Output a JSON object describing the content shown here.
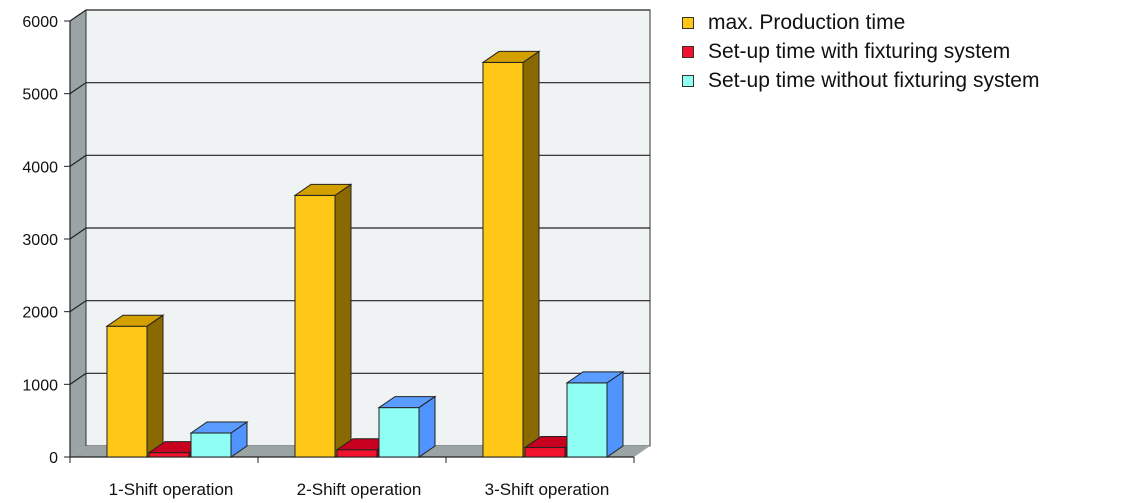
{
  "chart_data": {
    "type": "bar",
    "categories": [
      "1-Shift operation",
      "2-Shift operation",
      "3-Shift operation"
    ],
    "series": [
      {
        "name": "max. Production time",
        "values": [
          1800,
          3600,
          5430
        ],
        "color": "#FFC816",
        "side": "#8A6A00",
        "top": "#D4A000"
      },
      {
        "name": "Set-up time with fixturing system",
        "values": [
          60,
          100,
          130
        ],
        "color": "#F2122E",
        "side": "#9C0016",
        "top": "#C80020"
      },
      {
        "name": "Set-up time without fixturing system",
        "values": [
          330,
          680,
          1020
        ],
        "color": "#8FFFF4",
        "side": "#4F94FF",
        "top": "#5A9CFF"
      }
    ],
    "ylim": [
      0,
      6000
    ],
    "yticks": [
      "0",
      "1000",
      "2000",
      "3000",
      "4000",
      "5000",
      "6000"
    ],
    "grid": true,
    "legend_position": "top-right",
    "colors": {
      "wall": "#EFF3F3",
      "side_wall": "#9BA4A4",
      "floor": "#9BA4A4",
      "grid": "#222222"
    }
  }
}
